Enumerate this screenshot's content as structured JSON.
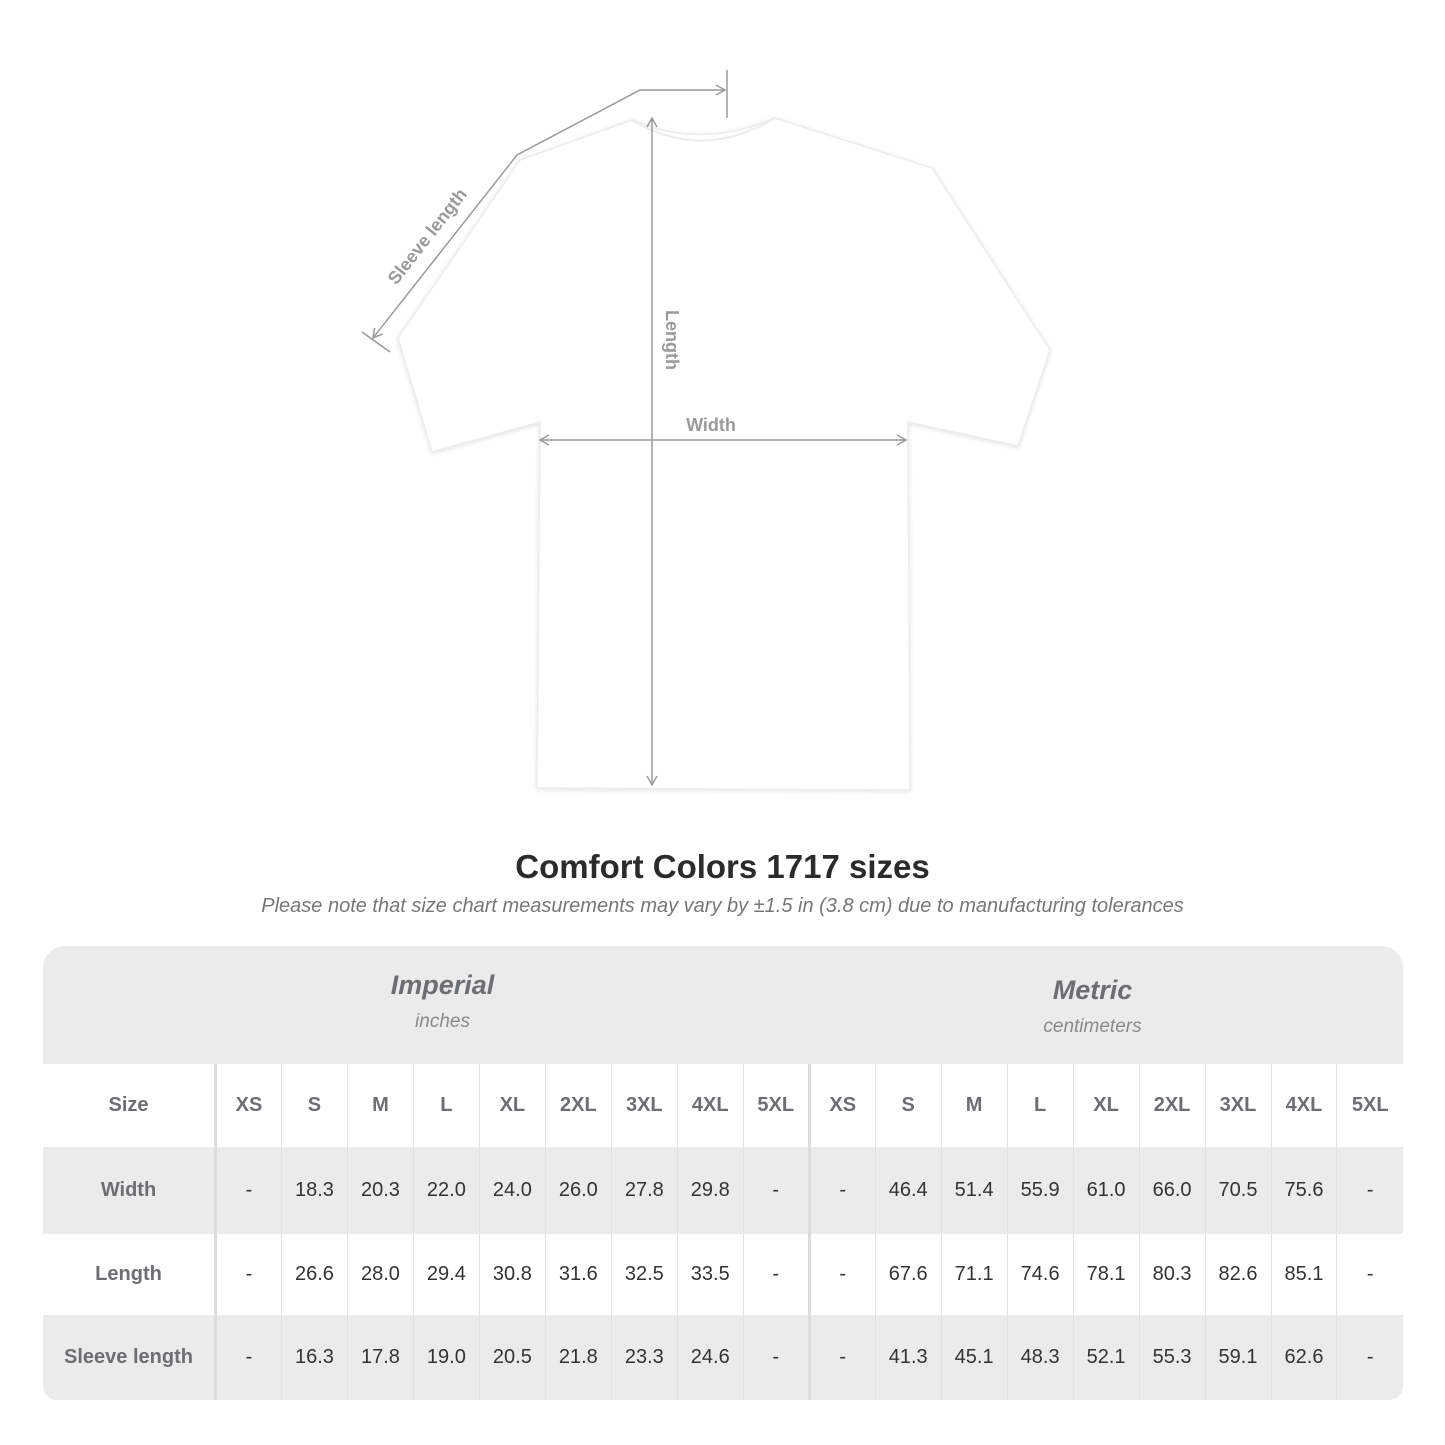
{
  "diagram": {
    "labels": {
      "sleeve": "Sleeve length",
      "length": "Length",
      "width": "Width"
    },
    "shirt_color": "#ffffff",
    "line_color": "#9a9a9a"
  },
  "title": "Comfort Colors 1717 sizes",
  "subtitle": "Please note that size chart measurements may vary by ±1.5 in (3.8 cm) due to manufacturing tolerances",
  "units": {
    "imperial": {
      "name": "Imperial",
      "sub": "inches"
    },
    "metric": {
      "name": "Metric",
      "sub": "centimeters"
    }
  },
  "table": {
    "size_label": "Size",
    "sizes": [
      "XS",
      "S",
      "M",
      "L",
      "XL",
      "2XL",
      "3XL",
      "4XL",
      "5XL"
    ],
    "rows": [
      {
        "label": "Width",
        "imperial": [
          "-",
          "18.3",
          "20.3",
          "22.0",
          "24.0",
          "26.0",
          "27.8",
          "29.8",
          "-"
        ],
        "metric": [
          "-",
          "46.4",
          "51.4",
          "55.9",
          "61.0",
          "66.0",
          "70.5",
          "75.6",
          "-"
        ]
      },
      {
        "label": "Length",
        "imperial": [
          "-",
          "26.6",
          "28.0",
          "29.4",
          "30.8",
          "31.6",
          "32.5",
          "33.5",
          "-"
        ],
        "metric": [
          "-",
          "67.6",
          "71.1",
          "74.6",
          "78.1",
          "80.3",
          "82.6",
          "85.1",
          "-"
        ]
      },
      {
        "label": "Sleeve length",
        "imperial": [
          "-",
          "16.3",
          "17.8",
          "19.0",
          "20.5",
          "21.8",
          "23.3",
          "24.6",
          "-"
        ],
        "metric": [
          "-",
          "41.3",
          "45.1",
          "48.3",
          "52.1",
          "55.3",
          "59.1",
          "62.6",
          "-"
        ]
      }
    ]
  }
}
